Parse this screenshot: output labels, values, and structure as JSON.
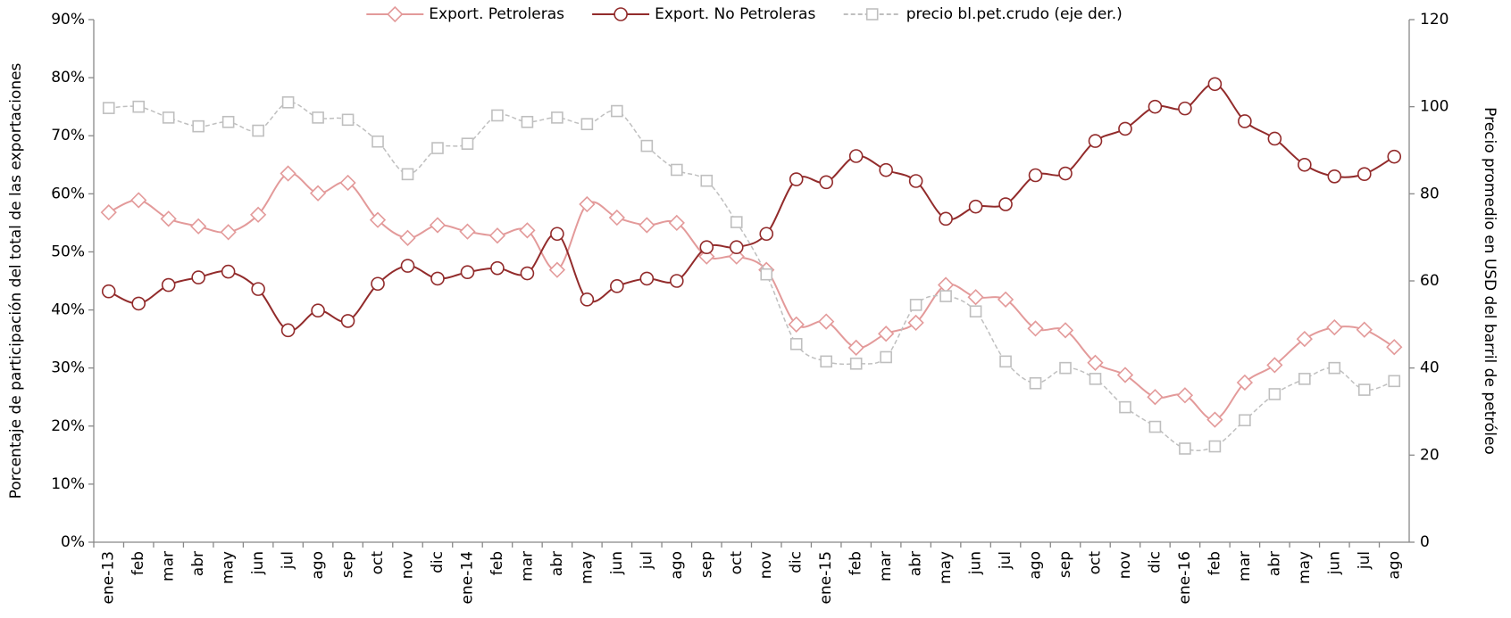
{
  "chart_data": {
    "type": "line",
    "y_label": "Porcentaje  de  participación del total de las exportaciones",
    "y2_label": "Precio promedio en USD del barril de petróleo",
    "categories": [
      "ene-13",
      "feb",
      "mar",
      "abr",
      "may",
      "jun",
      "jul",
      "ago",
      "sep",
      "oct",
      "nov",
      "dic",
      "ene-14",
      "feb",
      "mar",
      "abr",
      "may",
      "jun",
      "jul",
      "ago",
      "sep",
      "oct",
      "nov",
      "dic",
      "ene-15",
      "feb",
      "mar",
      "abr",
      "may",
      "jun",
      "jul",
      "ago",
      "sep",
      "oct",
      "nov",
      "dic",
      "ene-16",
      "feb",
      "mar",
      "abr",
      "may",
      "jun",
      "jul",
      "ago"
    ],
    "series": [
      {
        "name": "Export. Petroleras",
        "color": "#e39a9a",
        "marker": "diamond",
        "line_style": "solid",
        "axis": "y",
        "values": [
          56.8,
          58.9,
          55.7,
          54.4,
          53.4,
          56.4,
          63.5,
          60.1,
          61.9,
          55.5,
          52.4,
          54.6,
          53.5,
          52.8,
          53.7,
          46.9,
          58.2,
          55.9,
          54.6,
          55.0,
          49.2,
          49.2,
          46.9,
          37.5,
          38.0,
          33.5,
          35.9,
          37.8,
          44.3,
          42.2,
          41.8,
          36.8,
          36.5,
          30.9,
          28.8,
          25.0,
          25.3,
          21.1,
          27.5,
          30.5,
          35.0,
          37.0,
          36.6,
          33.6
        ]
      },
      {
        "name": "Export. No Petroleras",
        "color": "#922b2b",
        "marker": "circle",
        "line_style": "solid",
        "axis": "y",
        "values": [
          43.2,
          41.1,
          44.3,
          45.6,
          46.6,
          43.6,
          36.5,
          39.9,
          38.1,
          44.5,
          47.6,
          45.4,
          46.5,
          47.2,
          46.3,
          53.1,
          41.8,
          44.1,
          45.4,
          45.0,
          50.8,
          50.8,
          53.1,
          62.5,
          62.0,
          66.5,
          64.1,
          62.2,
          55.7,
          57.8,
          58.2,
          63.2,
          63.5,
          69.1,
          71.2,
          75.0,
          74.7,
          78.9,
          72.5,
          69.5,
          65.0,
          63.0,
          63.4,
          66.4
        ]
      },
      {
        "name": "precio bl.pet.crudo (eje der.)",
        "color": "#bfbfbf",
        "marker": "square",
        "line_style": "dashed",
        "axis": "y2",
        "values": [
          99.7,
          100,
          97.5,
          95.5,
          96.5,
          94.5,
          101,
          97.5,
          97,
          92,
          84.5,
          90.5,
          91.5,
          98,
          96.5,
          97.5,
          96,
          99,
          91,
          85.5,
          83,
          73.5,
          61.5,
          45.5,
          41.5,
          41,
          42.5,
          54.5,
          56.5,
          53,
          41.5,
          36.5,
          40,
          37.5,
          31,
          26.5,
          21.5,
          22,
          28,
          34,
          37.5,
          40,
          35,
          37
        ]
      }
    ],
    "ylim": [
      0,
      90
    ],
    "yticks": [
      {
        "value": 0,
        "label": "0%"
      },
      {
        "value": 10,
        "label": "10%"
      },
      {
        "value": 20,
        "label": "20%"
      },
      {
        "value": 30,
        "label": "30%"
      },
      {
        "value": 40,
        "label": "40%"
      },
      {
        "value": 50,
        "label": "50%"
      },
      {
        "value": 60,
        "label": "60%"
      },
      {
        "value": 70,
        "label": "70%"
      },
      {
        "value": 80,
        "label": "80%"
      },
      {
        "value": 90,
        "label": "90%"
      }
    ],
    "y2lim": [
      0,
      120
    ],
    "y2ticks": [
      0,
      20,
      40,
      60,
      80,
      100,
      120
    ],
    "grid": false,
    "legend": "top"
  }
}
